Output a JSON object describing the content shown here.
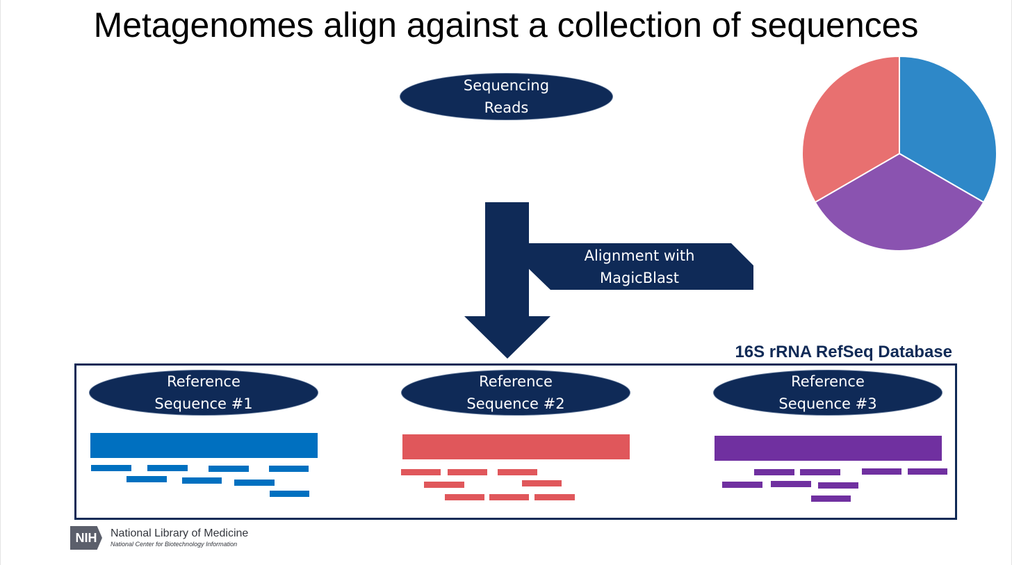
{
  "title": "Metagenomes align against a collection of sequences",
  "sequencing_reads": {
    "line1": "Sequencing",
    "line2": "Reads"
  },
  "alignment_callout": {
    "line1": "Alignment with",
    "line2": "MagicBlast"
  },
  "database_label": "16S rRNA RefSeq Database",
  "references": [
    {
      "line1": "Reference",
      "line2": "Sequence #1",
      "color": "#0070c0"
    },
    {
      "line1": "Reference",
      "line2": "Sequence #2",
      "color": "#e0575b"
    },
    {
      "line1": "Reference",
      "line2": "Sequence #3",
      "color": "#7030a0"
    }
  ],
  "pie_colors": [
    "#2e88c8",
    "#8a53b0",
    "#e87070"
  ],
  "branding": {
    "logo_text": "NIH",
    "library_name": "National Library of Medicine",
    "center_name": "National Center for Biotechnology Information"
  },
  "colors": {
    "navy": "#0f2a57"
  }
}
